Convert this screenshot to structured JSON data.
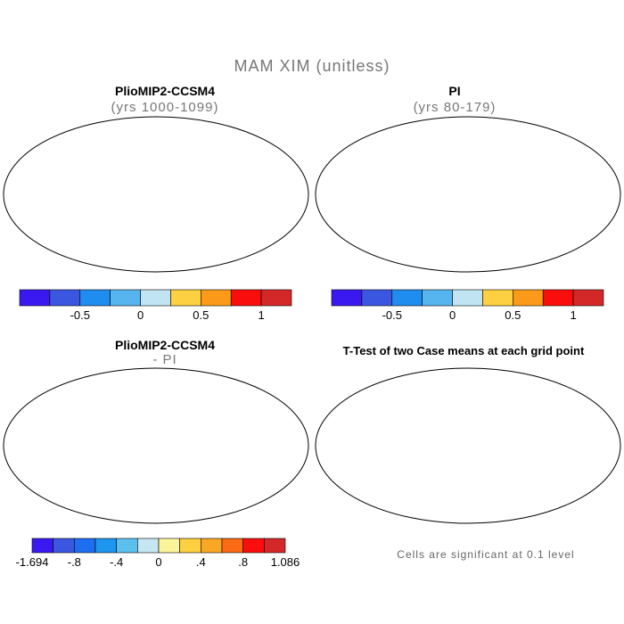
{
  "figure": {
    "title": "MAM XIM (unitless)"
  },
  "panels": [
    {
      "title": "PlioMIP2-CCSM4",
      "subtitle": "(yrs 1000-1099)",
      "colorbar": {
        "colors": [
          "#3a19f0",
          "#3b57e0",
          "#1f8cf0",
          "#56b4ee",
          "#c0e4f2",
          "#fcd040",
          "#fb9a1a",
          "#fa0d0d",
          "#d42828"
        ],
        "tick_labels": [
          "-0.5",
          "0",
          "0.5",
          "1"
        ]
      }
    },
    {
      "title": "PI",
      "subtitle": "(yrs 80-179)",
      "colorbar": {
        "colors": [
          "#3a19f0",
          "#3b57e0",
          "#1f8cf0",
          "#56b4ee",
          "#c0e4f2",
          "#fcd040",
          "#fb9a1a",
          "#fa0d0d",
          "#d42828"
        ],
        "tick_labels": [
          "-0.5",
          "0",
          "0.5",
          "1"
        ]
      }
    },
    {
      "title": "PlioMIP2-CCSM4",
      "subtitle": "- PI",
      "colorbar": {
        "colors": [
          "#3a19f0",
          "#3b57e0",
          "#1e6ef0",
          "#1e96f0",
          "#5cc0ee",
          "#c6e6f2",
          "#fcf49a",
          "#fcd040",
          "#fba726",
          "#fb6a14",
          "#fa0d0d",
          "#d42828"
        ],
        "tick_labels": [
          "-1.694",
          "-.8",
          "-.4",
          "0",
          ".4",
          ".8",
          "1.086"
        ]
      }
    },
    {
      "title": "T-Test of two Case means at each grid point",
      "note": "Cells are significant at 0.1 level"
    }
  ]
}
